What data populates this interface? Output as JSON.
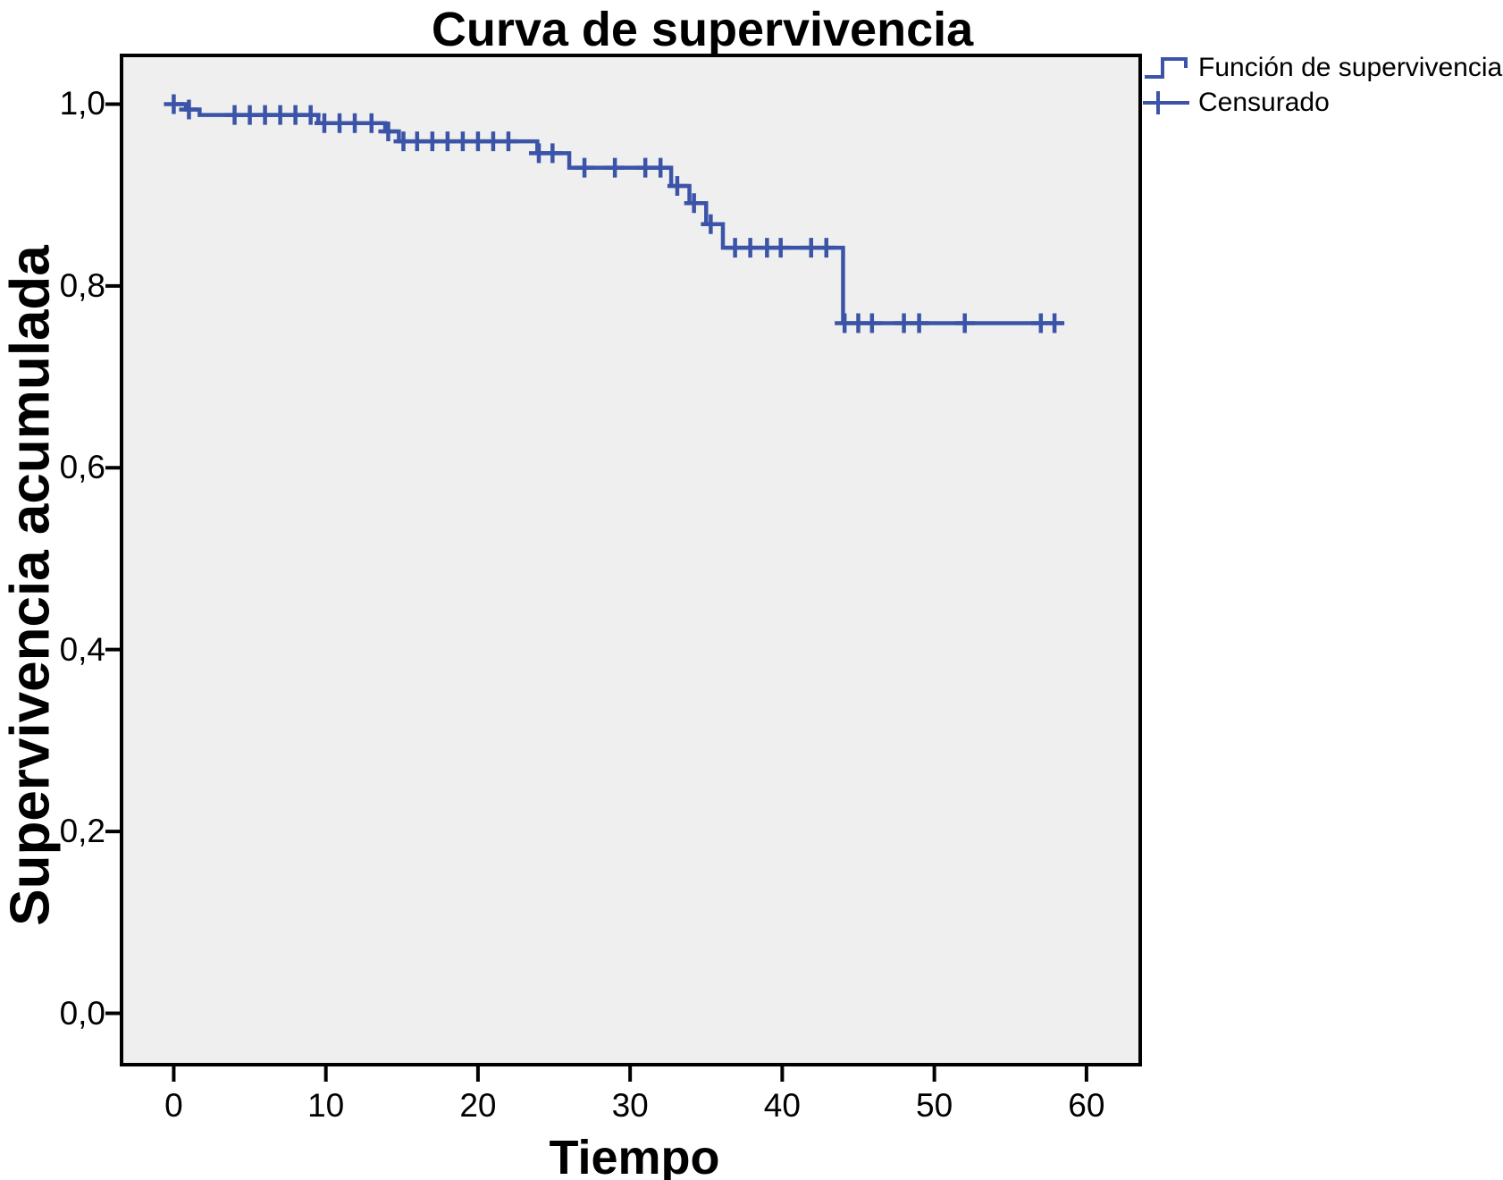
{
  "chart_data": {
    "type": "line",
    "subtype": "kaplan-meier-step-function",
    "title": "Curva de supervivencia",
    "xlabel": "Tiempo",
    "ylabel": "Supervivencia acumulada",
    "x_axis": {
      "range": [
        0,
        60
      ],
      "ticks": [
        0,
        10,
        20,
        30,
        40,
        50,
        60
      ],
      "tick_labels": [
        "0",
        "10",
        "20",
        "30",
        "40",
        "50",
        "60"
      ]
    },
    "y_axis": {
      "range": [
        0.0,
        1.0
      ],
      "ticks": [
        1.0,
        0.8,
        0.6,
        0.4,
        0.2,
        0.0
      ],
      "tick_labels": [
        "1,0",
        "0,8",
        "0,6",
        "0,4",
        "0,2",
        "0,0"
      ]
    },
    "legend": {
      "position": "top-right-outside",
      "entries": [
        "Función de supervivencia",
        "Censurado"
      ]
    },
    "series": [
      {
        "name": "Función de supervivencia",
        "type": "step",
        "comment": "levels as [t_start, t_end, cumulative_survival]",
        "levels": [
          [
            0.0,
            0.8,
            1.0
          ],
          [
            0.8,
            1.7,
            0.994
          ],
          [
            1.7,
            9.5,
            0.988
          ],
          [
            9.5,
            13.9,
            0.979
          ],
          [
            13.9,
            14.8,
            0.97
          ],
          [
            14.8,
            23.9,
            0.959
          ],
          [
            23.9,
            26.0,
            0.946
          ],
          [
            26.0,
            32.7,
            0.93
          ],
          [
            32.7,
            33.9,
            0.91
          ],
          [
            33.9,
            35.0,
            0.891
          ],
          [
            35.0,
            36.1,
            0.868
          ],
          [
            36.1,
            44.0,
            0.842
          ],
          [
            44.0,
            58.5,
            0.759
          ]
        ]
      },
      {
        "name": "Censurado",
        "type": "censor_marks",
        "points": [
          [
            0.0,
            1.0
          ],
          [
            1.0,
            0.994
          ],
          [
            4.0,
            0.988
          ],
          [
            5.0,
            0.988
          ],
          [
            6.0,
            0.988
          ],
          [
            7.0,
            0.988
          ],
          [
            8.0,
            0.988
          ],
          [
            9.0,
            0.988
          ],
          [
            9.9,
            0.979
          ],
          [
            10.9,
            0.979
          ],
          [
            11.9,
            0.979
          ],
          [
            13.0,
            0.979
          ],
          [
            14.1,
            0.97
          ],
          [
            15.1,
            0.959
          ],
          [
            16.0,
            0.959
          ],
          [
            17.0,
            0.959
          ],
          [
            18.0,
            0.959
          ],
          [
            19.0,
            0.959
          ],
          [
            20.0,
            0.959
          ],
          [
            21.0,
            0.959
          ],
          [
            22.0,
            0.959
          ],
          [
            24.0,
            0.946
          ],
          [
            24.9,
            0.946
          ],
          [
            27.0,
            0.93
          ],
          [
            29.0,
            0.93
          ],
          [
            31.0,
            0.93
          ],
          [
            32.0,
            0.93
          ],
          [
            33.1,
            0.91
          ],
          [
            34.2,
            0.891
          ],
          [
            35.3,
            0.868
          ],
          [
            36.9,
            0.842
          ],
          [
            37.9,
            0.842
          ],
          [
            39.0,
            0.842
          ],
          [
            39.9,
            0.842
          ],
          [
            41.9,
            0.842
          ],
          [
            42.9,
            0.842
          ],
          [
            44.1,
            0.759
          ],
          [
            45.0,
            0.759
          ],
          [
            45.9,
            0.759
          ],
          [
            48.0,
            0.759
          ],
          [
            49.0,
            0.759
          ],
          [
            52.0,
            0.759
          ],
          [
            57.0,
            0.759
          ],
          [
            57.9,
            0.759
          ]
        ]
      }
    ],
    "layout": {
      "grid": false,
      "plot_bg": "#EFEFEF",
      "frame_color": "#000000",
      "curve_color": "#3B54A8",
      "text_color": "#000000",
      "outer_bg": "#FFFFFF"
    }
  }
}
